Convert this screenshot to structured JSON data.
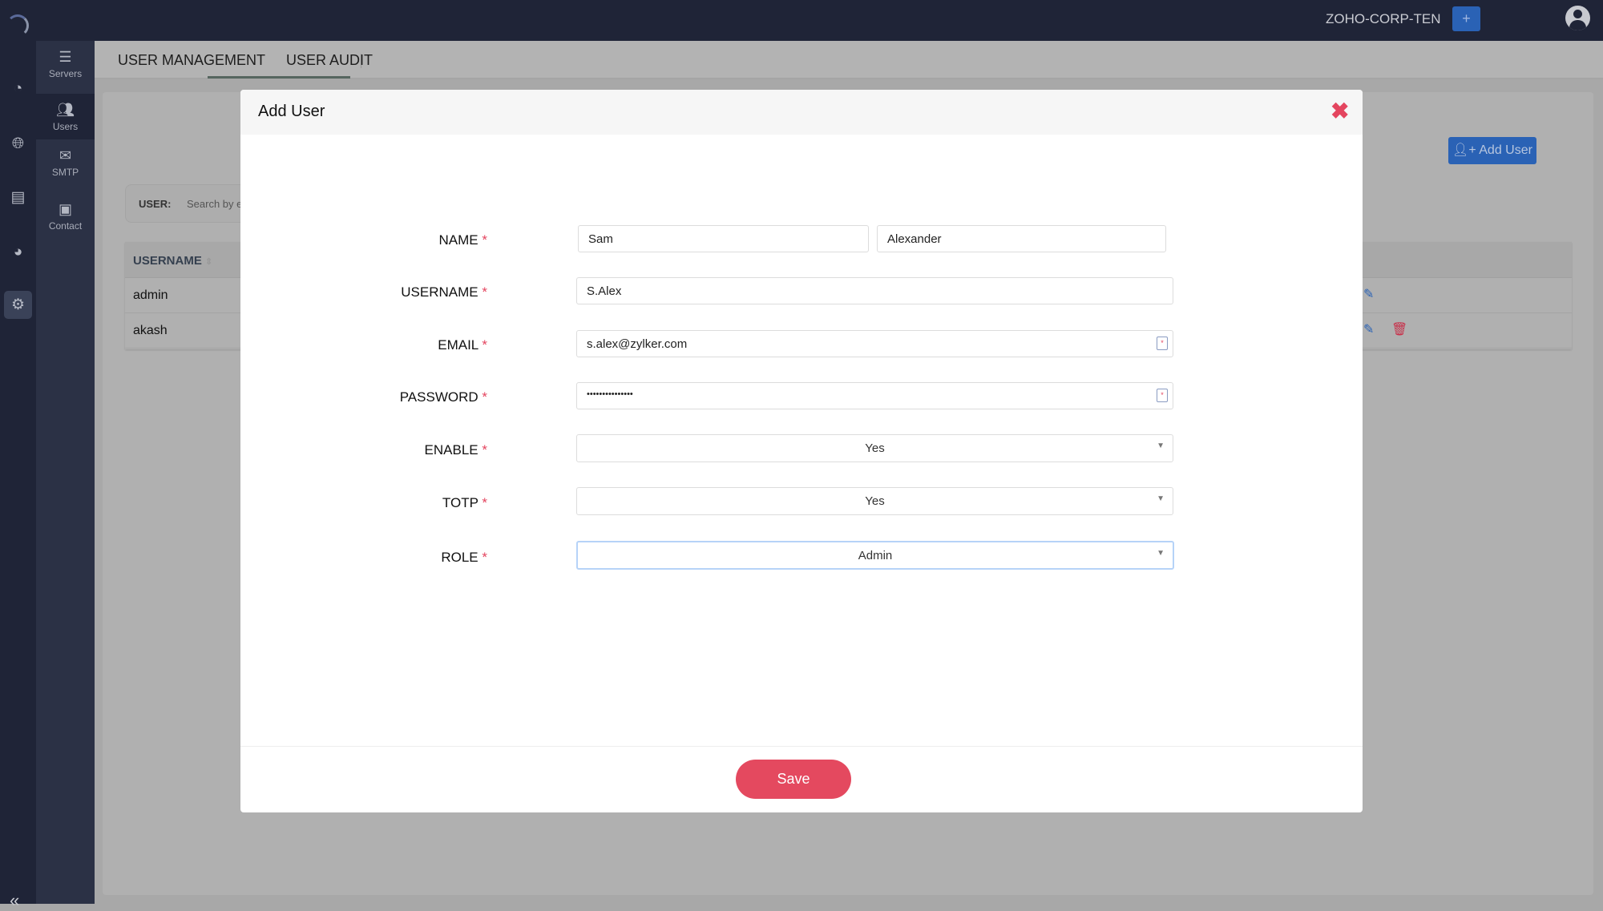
{
  "topbar": {
    "org": "ZOHO-CORP-TEN",
    "plus": "+"
  },
  "subnav": [
    {
      "label": "Servers",
      "icon": "server-icon"
    },
    {
      "label": "Users",
      "icon": "users-gear-icon"
    },
    {
      "label": "SMTP",
      "icon": "mail-icon"
    },
    {
      "label": "Contact",
      "icon": "contact-icon"
    }
  ],
  "tabs": [
    "USER MANAGEMENT",
    "USER AUDIT"
  ],
  "page": {
    "add_user": "Add User",
    "search_label": "USER:",
    "search_placeholder": "Search by e",
    "column": "USERNAME",
    "rows": [
      "admin",
      "akash"
    ]
  },
  "modal": {
    "title": "Add User",
    "required": "*",
    "labels": {
      "name": "NAME",
      "username": "USERNAME",
      "email": "EMAIL",
      "password": "PASSWORD",
      "enable": "ENABLE",
      "totp": "TOTP",
      "role": "ROLE"
    },
    "values": {
      "first_name": "Sam",
      "last_name": "Alexander",
      "username": "S.Alex",
      "email": "s.alex@zylker.com",
      "password": "•••••••••••••••",
      "enable": "Yes",
      "totp": "Yes",
      "role": "Admin"
    },
    "save": "Save"
  },
  "colors": {
    "accent": "#2a62b5",
    "danger": "#e4495f",
    "topbar": "#1f2437"
  }
}
